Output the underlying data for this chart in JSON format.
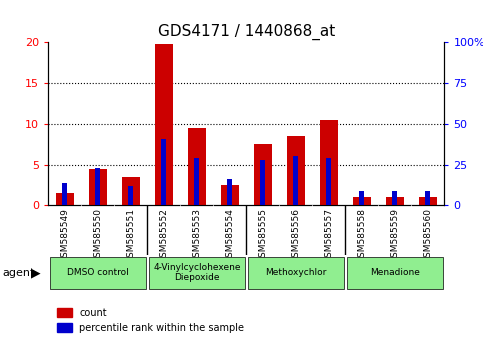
{
  "title": "GDS4171 / 1440868_at",
  "samples": [
    "GSM585549",
    "GSM585550",
    "GSM585551",
    "GSM585552",
    "GSM585553",
    "GSM585554",
    "GSM585555",
    "GSM585556",
    "GSM585557",
    "GSM585558",
    "GSM585559",
    "GSM585560"
  ],
  "count_values": [
    1.5,
    4.5,
    3.5,
    19.8,
    9.5,
    2.5,
    7.5,
    8.5,
    10.5,
    1.0,
    1.0,
    1.0
  ],
  "percentile_values": [
    14,
    23,
    12,
    41,
    29,
    16,
    28,
    30,
    29,
    9,
    9,
    9
  ],
  "ylim_left": [
    0,
    20
  ],
  "ylim_right": [
    0,
    100
  ],
  "yticks_left": [
    0,
    5,
    10,
    15,
    20
  ],
  "yticks_right": [
    0,
    25,
    50,
    75,
    100
  ],
  "bar_color_red": "#cc0000",
  "bar_color_blue": "#0000cc",
  "agent_groups": [
    {
      "label": "DMSO control",
      "start": 0,
      "end": 2,
      "color": "#90ee90"
    },
    {
      "label": "4-Vinylcyclohexene\nDiepoxide",
      "start": 3,
      "end": 5,
      "color": "#90ee90"
    },
    {
      "label": "Methoxychlor",
      "start": 6,
      "end": 8,
      "color": "#90ee90"
    },
    {
      "label": "Menadione",
      "start": 9,
      "end": 11,
      "color": "#90ee90"
    }
  ],
  "agent_label": "agent",
  "legend_count": "count",
  "legend_percentile": "percentile rank within the sample",
  "background_plot": "#ffffff",
  "background_label": "#c8c8c8",
  "title_fontsize": 11,
  "tick_fontsize": 6.5,
  "red_bar_width": 0.55,
  "blue_bar_width": 0.15
}
